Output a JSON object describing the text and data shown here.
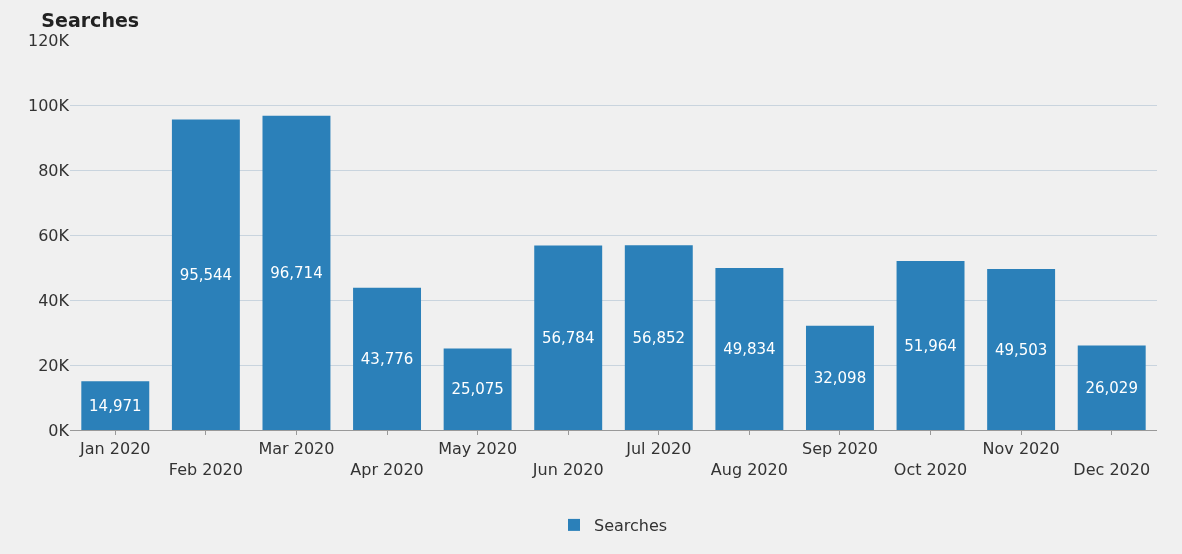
{
  "chart_data": {
    "type": "bar",
    "title": "Searches",
    "categories": [
      "Jan 2020",
      "Feb 2020",
      "Mar 2020",
      "Apr 2020",
      "May 2020",
      "Jun 2020",
      "Jul 2020",
      "Aug 2020",
      "Sep 2020",
      "Oct 2020",
      "Nov 2020",
      "Dec 2020"
    ],
    "series": [
      {
        "name": "Searches",
        "color": "#2b80b9",
        "values": [
          14971,
          95544,
          96714,
          43776,
          25075,
          56784,
          56852,
          49834,
          32098,
          51964,
          49503,
          26029
        ],
        "value_labels": [
          "14,971",
          "95,544",
          "96,714",
          "43,776",
          "25,075",
          "56,784",
          "56,852",
          "49,834",
          "32,098",
          "51,964",
          "49,503",
          "26,029"
        ]
      }
    ],
    "ylim": [
      0,
      120000
    ],
    "yticks": [
      {
        "value": 0,
        "label": "0K"
      },
      {
        "value": 20000,
        "label": "20K"
      },
      {
        "value": 40000,
        "label": "40K"
      },
      {
        "value": 60000,
        "label": "60K"
      },
      {
        "value": 80000,
        "label": "80K"
      },
      {
        "value": 100000,
        "label": "100K"
      },
      {
        "value": 120000,
        "label": "120K"
      }
    ],
    "grid": "y",
    "legend": "bottom"
  }
}
